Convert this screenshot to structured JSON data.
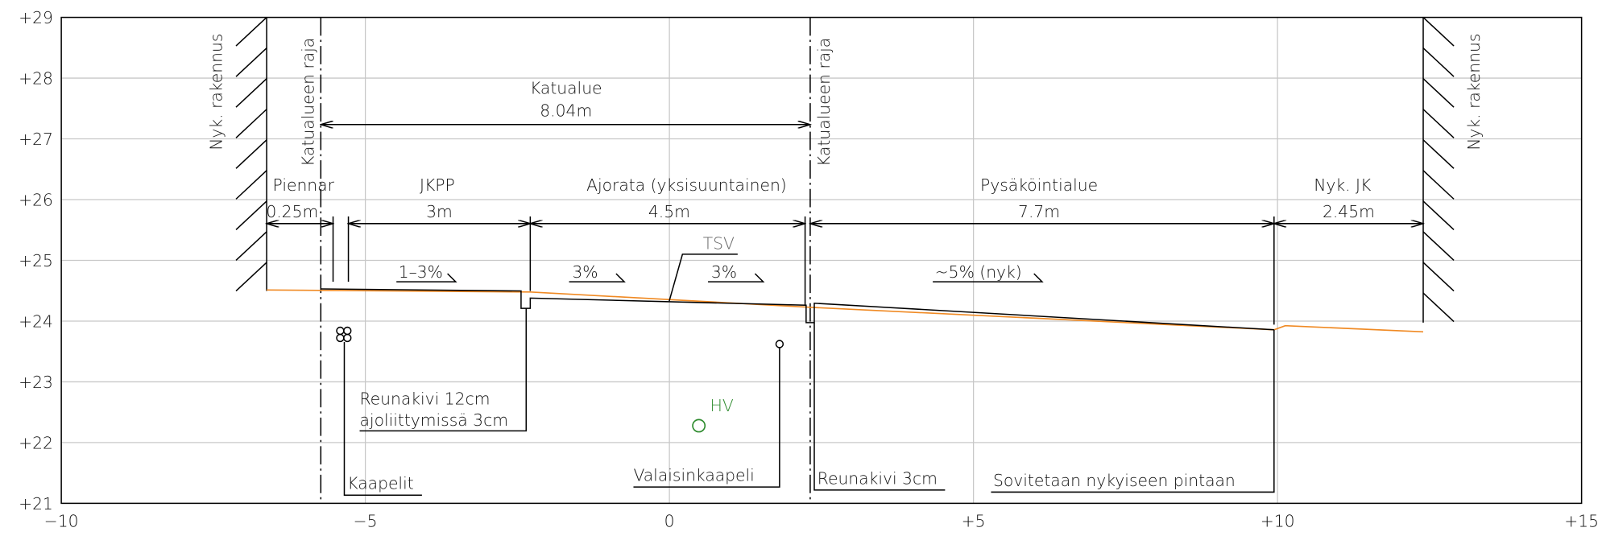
{
  "axes": {
    "y_ticks": [
      "+29",
      "+28",
      "+27",
      "+26",
      "+25",
      "+24",
      "+23",
      "+22",
      "+21"
    ],
    "x_ticks": [
      "−10",
      "−5",
      "0",
      "+5",
      "+10",
      "+15"
    ]
  },
  "labels": {
    "left_building": "Nyk. rakennus",
    "right_building": "Nyk. rakennus",
    "boundary_left": "Katualueen raja",
    "boundary_right": "Katualueen raja",
    "street_area": "Katualue",
    "street_width": "8.04m",
    "shoulder": "Piennar",
    "shoulder_width": "0.25m",
    "sidewalk": "JKPP",
    "sidewalk_width": "3m",
    "carriageway": "Ajorata (yksisuuntainen)",
    "carriageway_width": "4.5m",
    "parking": "Pysäköintialue",
    "parking_width": "7.7m",
    "existing_sidewalk": "Nyk. JK",
    "existing_sidewalk_width": "2.45m",
    "slope_sidewalk": "1–3%",
    "slope_road_left": "3%",
    "slope_road_right": "3%",
    "tsv": "TSV",
    "slope_parking": "~5% (nyk)",
    "curb_12": "Reunakivi 12cm",
    "curb_12_note": "ajoliittymissä 3cm",
    "cables": "Kaapelit",
    "hv": "HV",
    "light_cable": "Valaisinkaapeli",
    "curb_3": "Reunakivi 3cm",
    "fit": "Sovitetaan nykyiseen pintaan"
  }
}
